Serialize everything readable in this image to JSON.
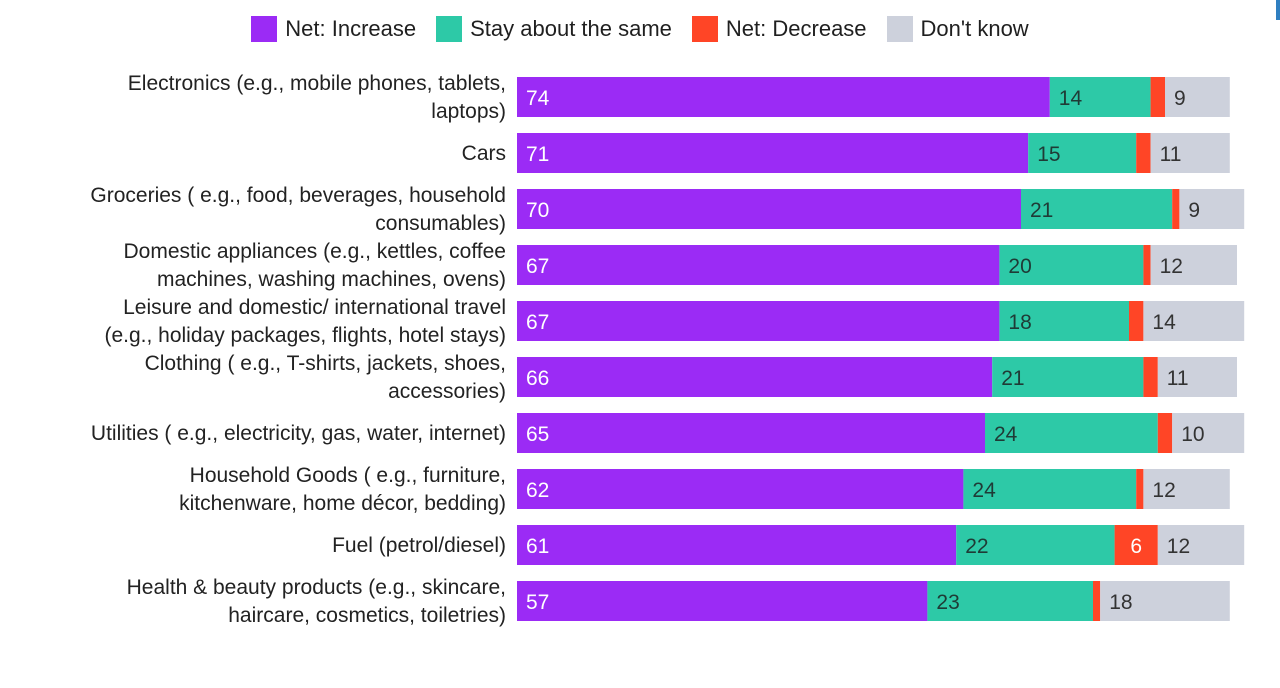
{
  "legend": [
    {
      "name": "Net: Increase",
      "color": "#9b2bf5"
    },
    {
      "name": "Stay about the same",
      "color": "#2dc9a7"
    },
    {
      "name": "Net: Decrease",
      "color": "#ff4526"
    },
    {
      "name": "Don't know",
      "color": "#cdd1dc"
    }
  ],
  "chart_data": {
    "type": "bar",
    "orientation": "horizontal",
    "stacked": true,
    "categories": [
      [
        "Electronics (e.g., mobile phones, tablets,",
        "laptops)"
      ],
      [
        "Cars"
      ],
      [
        "Groceries ( e.g., food, beverages, household",
        "consumables)"
      ],
      [
        "Domestic appliances (e.g., kettles, coffee",
        "machines, washing machines, ovens)"
      ],
      [
        "Leisure and domestic/ international travel",
        "(e.g., holiday packages, flights, hotel stays)"
      ],
      [
        "Clothing ( e.g., T-shirts, jackets, shoes,",
        "accessories)"
      ],
      [
        "Utilities ( e.g., electricity, gas, water, internet)"
      ],
      [
        "Household Goods ( e.g., furniture,",
        "kitchenware, home décor, bedding)"
      ],
      [
        "Fuel (petrol/diesel)"
      ],
      [
        "Health & beauty products (e.g., skincare,",
        "haircare, cosmetics, toiletries)"
      ]
    ],
    "series": [
      {
        "name": "Net: Increase",
        "color": "#9b2bf5",
        "label_color": "#ffffff",
        "values": [
          74,
          71,
          70,
          67,
          67,
          66,
          65,
          62,
          61,
          57
        ],
        "labels": [
          "74",
          "71",
          "70",
          "67",
          "67",
          "66",
          "65",
          "62",
          "61",
          "57"
        ]
      },
      {
        "name": "Stay about the same",
        "color": "#2dc9a7",
        "label_color": "#1f3b36",
        "values": [
          14,
          15,
          21,
          20,
          18,
          21,
          24,
          24,
          22,
          23
        ],
        "labels": [
          "14",
          "15",
          "21",
          "20",
          "18",
          "21",
          "24",
          "24",
          "22",
          "23"
        ]
      },
      {
        "name": "Net: Decrease",
        "color": "#ff4526",
        "label_color": "#ffffff",
        "values": [
          2,
          2,
          1,
          1,
          2,
          2,
          2,
          1,
          6,
          1
        ],
        "labels": [
          "",
          "",
          "",
          "",
          "",
          "",
          "",
          "",
          "6",
          ""
        ]
      },
      {
        "name": "Don't know",
        "color": "#cdd1dc",
        "label_color": "#333333",
        "values": [
          9,
          11,
          9,
          12,
          14,
          11,
          10,
          12,
          12,
          18
        ],
        "labels": [
          "9",
          "11",
          "9",
          "12",
          "14",
          "11",
          "10",
          "12",
          "12",
          "18"
        ]
      }
    ],
    "xlim": [
      0,
      100
    ],
    "grid": false,
    "legend_position": "top"
  }
}
